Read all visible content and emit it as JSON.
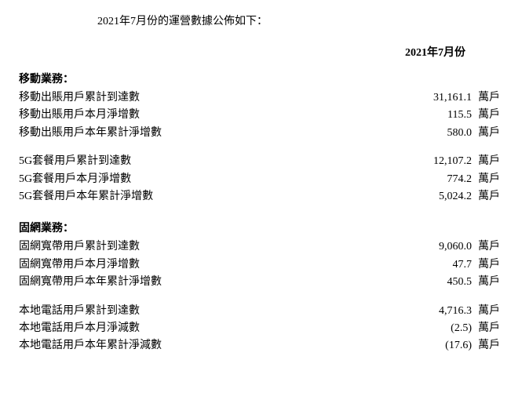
{
  "intro_text": "2021年7月份的運營數據公佈如下：",
  "header": {
    "period": "2021年7月份"
  },
  "unit": "萬戶",
  "sections": [
    {
      "title": "移動業務：",
      "groups": [
        {
          "rows": [
            {
              "label": "移動出賬用戶累計到達數",
              "value": "31,161.1"
            },
            {
              "label": "移動出賬用戶本月淨增數",
              "value": "115.5"
            },
            {
              "label": "移動出賬用戶本年累計淨增數",
              "value": "580.0"
            }
          ]
        },
        {
          "rows": [
            {
              "label": "5G套餐用戶累計到達數",
              "value": "12,107.2"
            },
            {
              "label": "5G套餐用戶本月淨增數",
              "value": "774.2"
            },
            {
              "label": "5G套餐用戶本年累計淨增數",
              "value": "5,024.2"
            }
          ]
        }
      ]
    },
    {
      "title": "固網業務：",
      "groups": [
        {
          "rows": [
            {
              "label": "固網寬帶用戶累計到達數",
              "value": "9,060.0"
            },
            {
              "label": "固網寬帶用戶本月淨增數",
              "value": "47.7"
            },
            {
              "label": "固網寬帶用戶本年累計淨增數",
              "value": "450.5"
            }
          ]
        },
        {
          "rows": [
            {
              "label": "本地電話用戶累計到達數",
              "value": "4,716.3"
            },
            {
              "label": "本地電話用戶本月淨減數",
              "value": "(2.5)"
            },
            {
              "label": "本地電話用戶本年累計淨減數",
              "value": "(17.6)"
            }
          ]
        }
      ]
    }
  ]
}
